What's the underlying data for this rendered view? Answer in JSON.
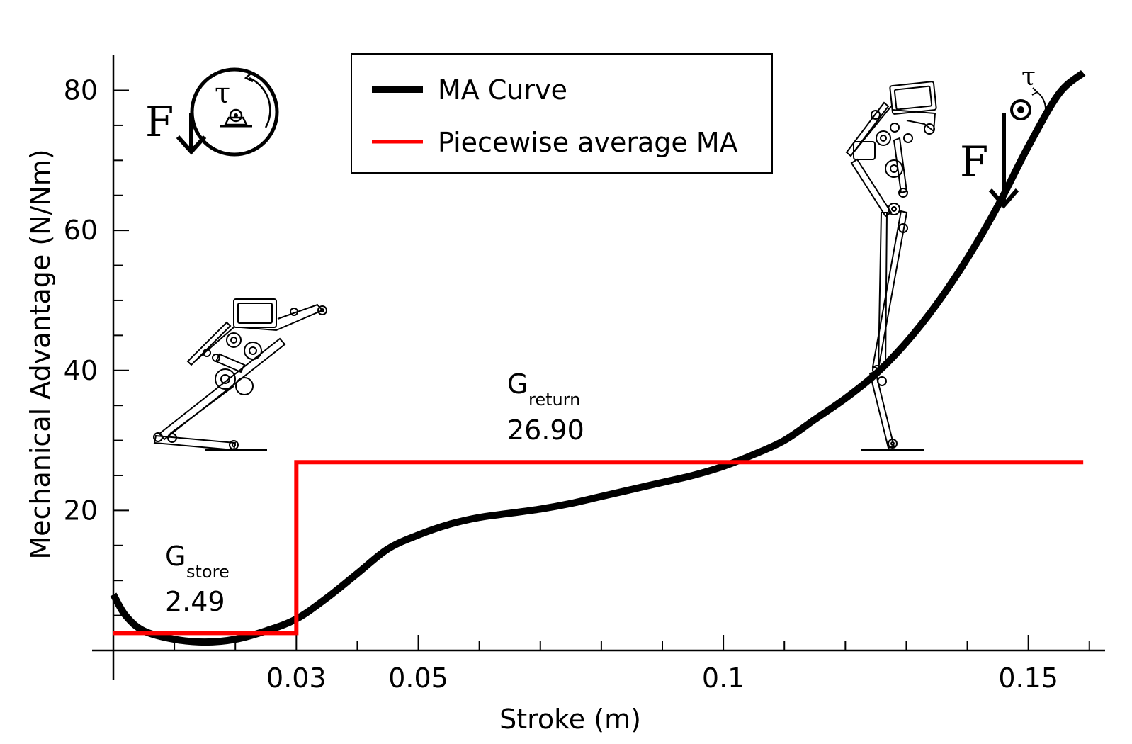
{
  "chart_data": {
    "type": "line",
    "xlabel": "Stroke (m)",
    "ylabel": "Mechanical Advantage (N/Nm)",
    "xlim": [
      0,
      0.162
    ],
    "ylim": [
      0,
      84
    ],
    "x_ticks": [
      0.03,
      0.05,
      0.1,
      0.15
    ],
    "x_tick_labels": [
      "0.03",
      "0.05",
      "0.1",
      "0.15"
    ],
    "y_ticks": [
      20,
      40,
      60,
      80
    ],
    "y_tick_labels": [
      "20",
      "40",
      "60",
      "80"
    ],
    "grid": false,
    "legend_position": "top-center",
    "series": [
      {
        "name": "MA Curve",
        "color": "#000000",
        "x": [
          0,
          0.002,
          0.005,
          0.01,
          0.015,
          0.02,
          0.025,
          0.03,
          0.035,
          0.04,
          0.045,
          0.05,
          0.055,
          0.06,
          0.065,
          0.07,
          0.075,
          0.08,
          0.085,
          0.09,
          0.095,
          0.1,
          0.105,
          0.11,
          0.115,
          0.12,
          0.125,
          0.13,
          0.135,
          0.14,
          0.145,
          0.15,
          0.155,
          0.159
        ],
        "y": [
          8,
          5,
          2.8,
          1.6,
          1.2,
          1.6,
          2.8,
          4.5,
          7.5,
          11,
          14.5,
          16.5,
          18,
          19,
          19.6,
          20.2,
          21,
          22,
          23,
          24,
          25,
          26.3,
          28,
          30,
          33,
          36,
          39.5,
          44,
          49.5,
          56,
          63.5,
          72,
          79.5,
          82.5
        ]
      },
      {
        "name": "Piecewise average MA",
        "color": "#ff0000",
        "x": [
          0,
          0.03,
          0.03,
          0.159
        ],
        "y": [
          2.49,
          2.49,
          26.9,
          26.9
        ]
      }
    ],
    "annotations": [
      {
        "main": "G",
        "sub": "store",
        "value": "2.49"
      },
      {
        "main": "G",
        "sub": "return",
        "value": "26.90"
      }
    ]
  },
  "diagram_labels": {
    "force": "F",
    "torque": "τ"
  }
}
